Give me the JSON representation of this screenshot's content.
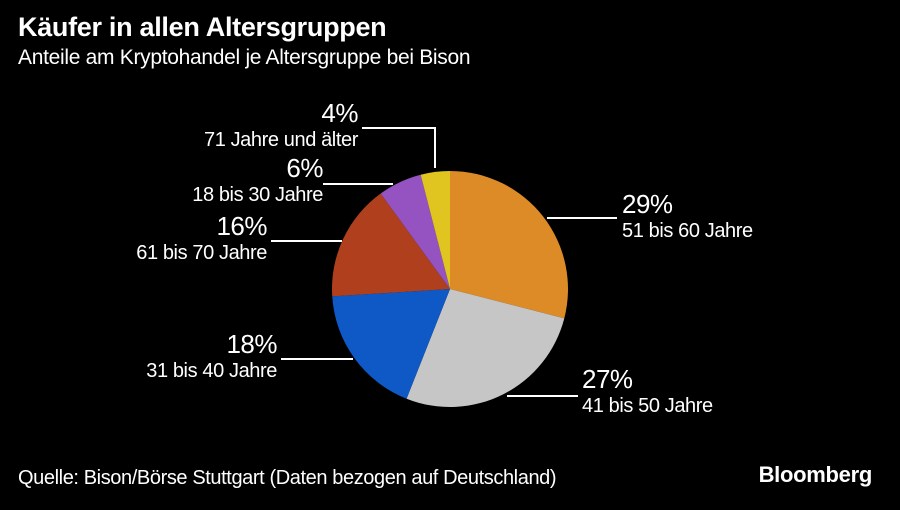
{
  "header": {
    "title": "Käufer in allen Altersgruppen",
    "subtitle": "Anteile am Kryptohandel je Altersgruppe bei Bison"
  },
  "chart_data": {
    "type": "pie",
    "title": "Käufer in allen Altersgruppen",
    "subtitle": "Anteile am Kryptohandel je Altersgruppe bei Bison",
    "unit": "%",
    "start_angle_deg": 0,
    "direction": "clockwise",
    "legend_position": "callout-labels",
    "segments": [
      {
        "label": "51 bis 60 Jahre",
        "value": 29,
        "pct_label": "29%",
        "color": "#DD8B27"
      },
      {
        "label": "41 bis 50 Jahre",
        "value": 27,
        "pct_label": "27%",
        "color": "#C6C6C6"
      },
      {
        "label": "31 bis 40 Jahre",
        "value": 18,
        "pct_label": "18%",
        "color": "#0E59C6"
      },
      {
        "label": "61 bis 70 Jahre",
        "value": 16,
        "pct_label": "16%",
        "color": "#B0401D"
      },
      {
        "label": "18 bis 30 Jahre",
        "value": 6,
        "pct_label": "6%",
        "color": "#9553C2"
      },
      {
        "label": "71 Jahre und älter",
        "value": 4,
        "pct_label": "4%",
        "color": "#E0C41F"
      }
    ],
    "colors": {
      "background": "#000000",
      "text": "#FFFFFF",
      "leader_line": "#FFFFFF"
    }
  },
  "footer": {
    "source": "Quelle: Bison/Börse Stuttgart (Daten bezogen auf Deutschland)",
    "brand": "Bloomberg"
  }
}
